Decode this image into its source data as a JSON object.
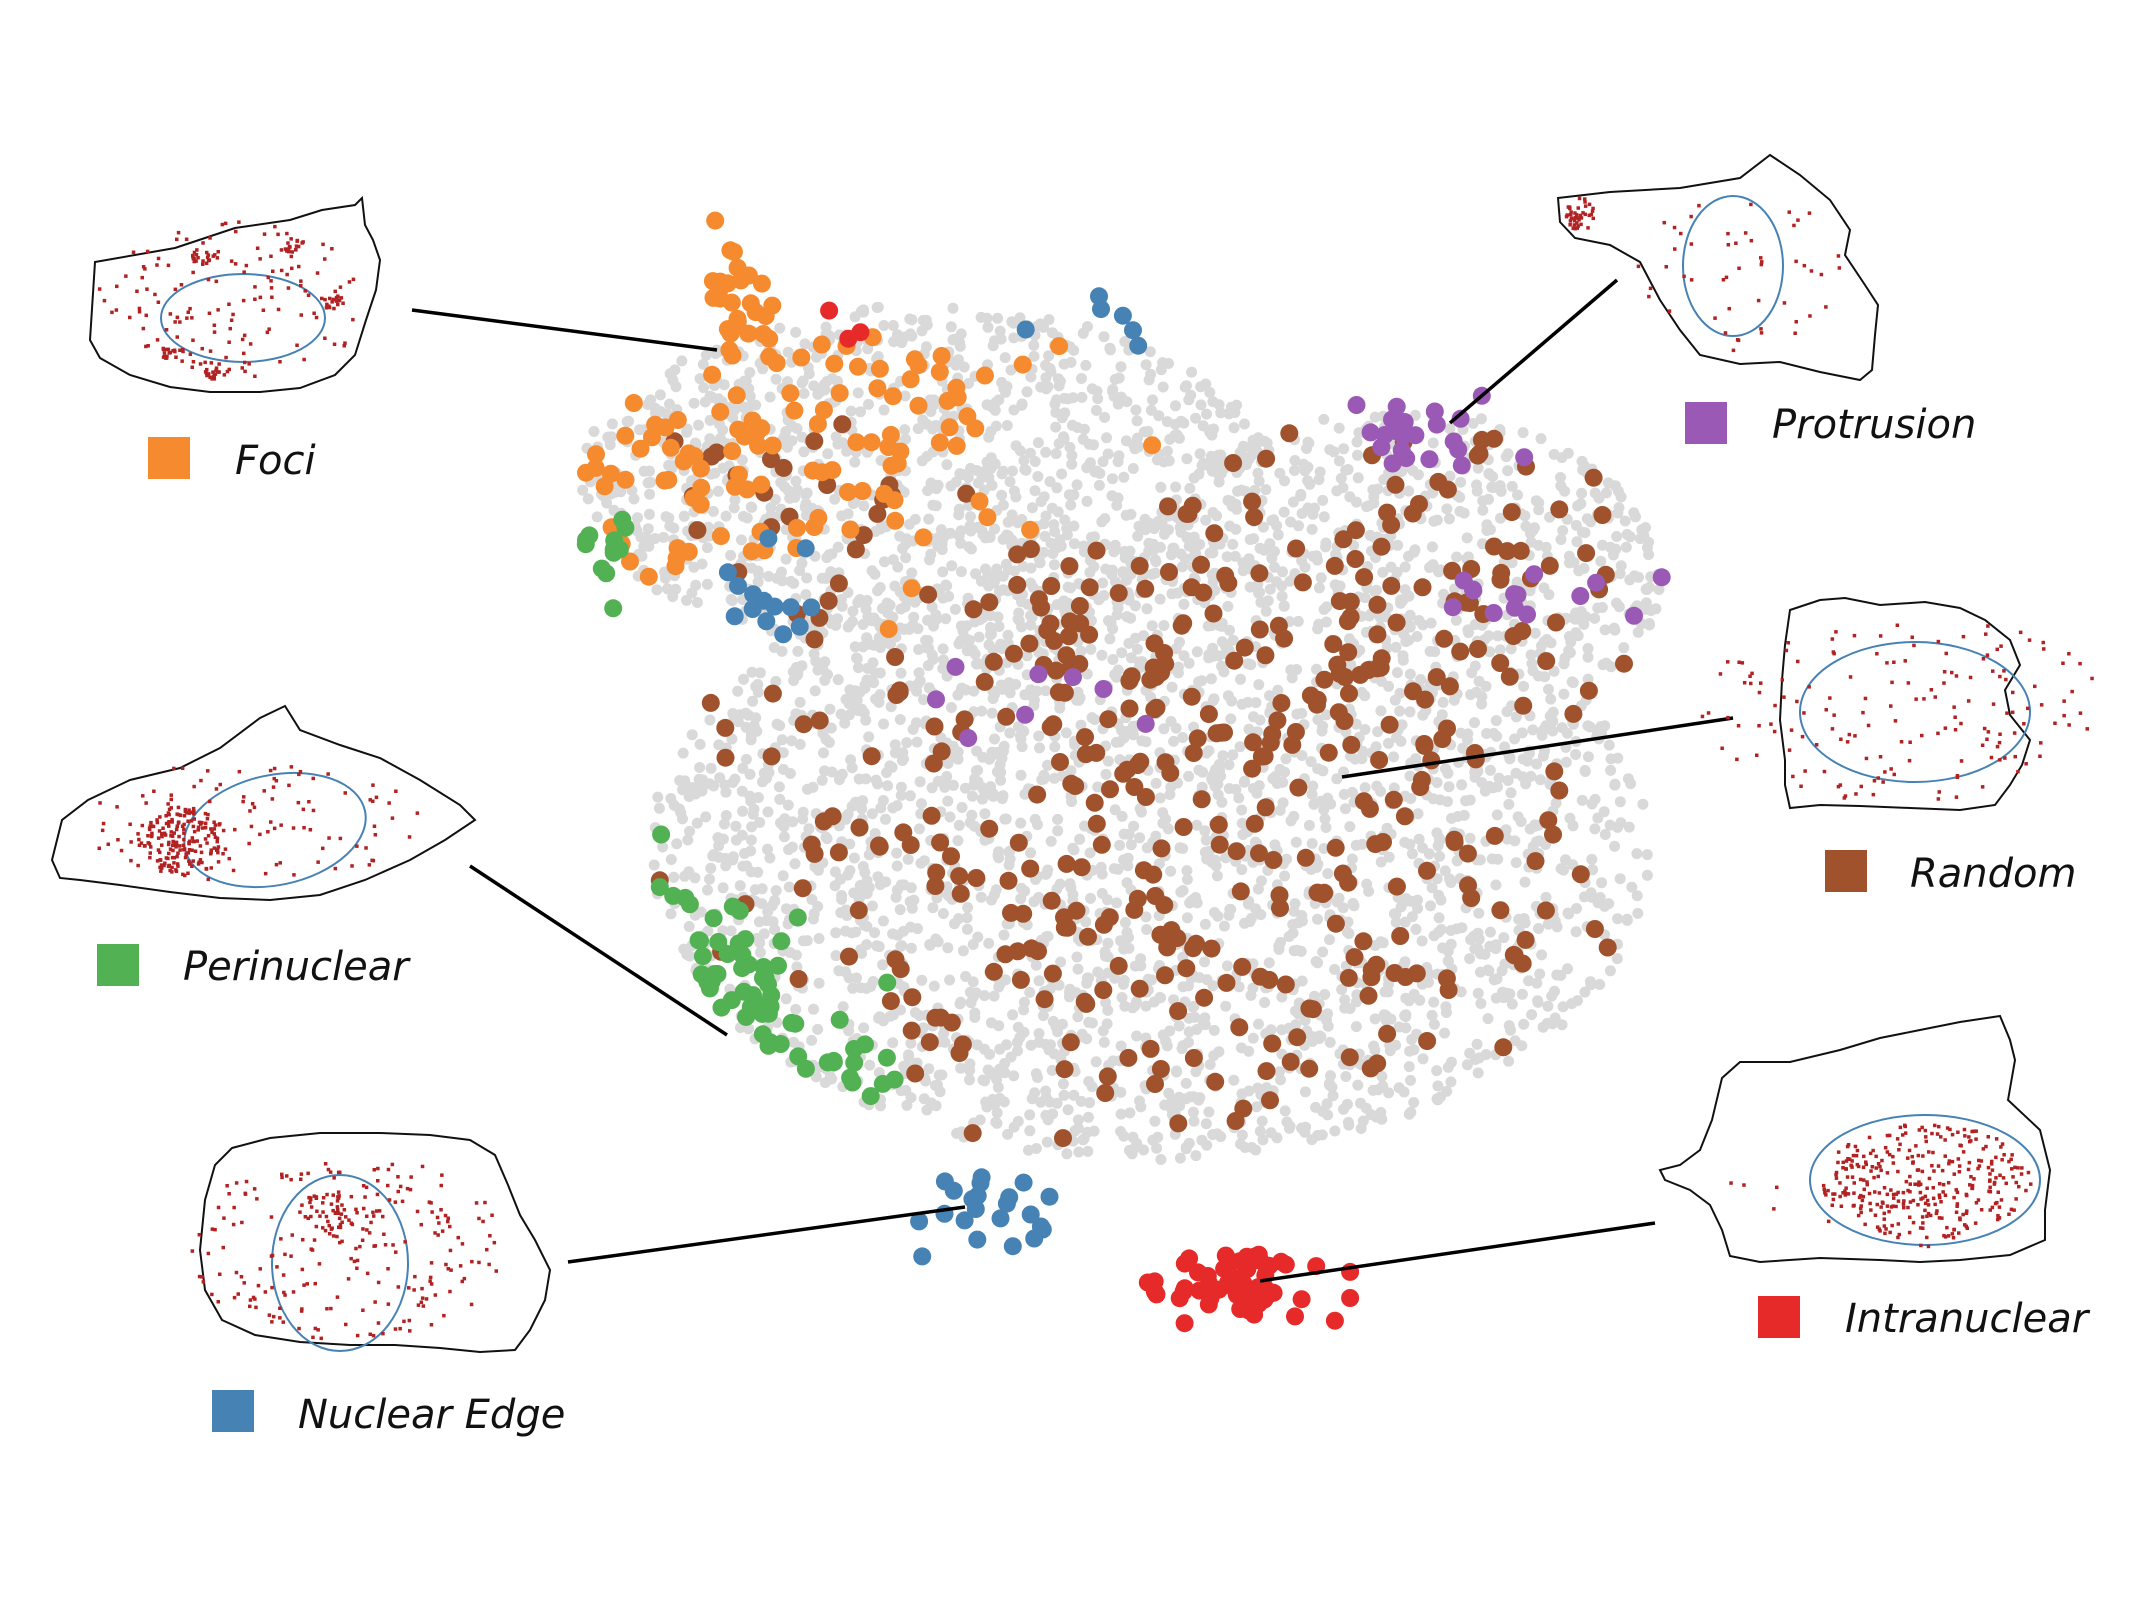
{
  "chart_data": {
    "type": "scatter",
    "title": "",
    "xlabel": "",
    "ylabel": "",
    "grid": false,
    "background_points_color": "#d9d9d9",
    "series": [
      {
        "name": "Foci",
        "color": "#f58a2f"
      },
      {
        "name": "Protrusion",
        "color": "#9b59b6"
      },
      {
        "name": "Perinuclear",
        "color": "#52b152"
      },
      {
        "name": "Random",
        "color": "#a0522d"
      },
      {
        "name": "Nuclear Edge",
        "color": "#4682b4"
      },
      {
        "name": "Intranuclear",
        "color": "#e62a2a"
      }
    ],
    "legend": {
      "placement": "around-plot",
      "labels": [
        "Foci",
        "Protrusion",
        "Perinuclear",
        "Random",
        "Nuclear Edge",
        "Intranuclear"
      ]
    },
    "annotations": [
      "Foci",
      "Protrusion",
      "Perinuclear",
      "Random",
      "Nuclear Edge",
      "Intranuclear"
    ]
  },
  "colors": {
    "spot": "#b22222",
    "nucleus": "#4682b4",
    "outline": "#111111"
  }
}
